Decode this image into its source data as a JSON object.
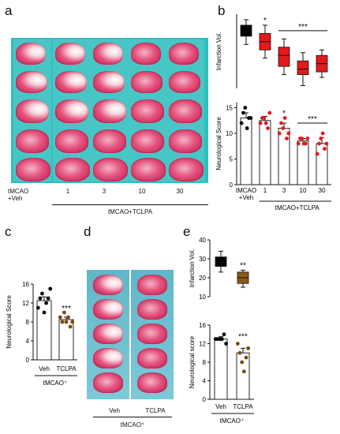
{
  "panels": {
    "a": {
      "letter": "a",
      "axis_labels": [
        "tMCAO\n+Veh",
        "1",
        "3",
        "10",
        "30"
      ],
      "group_label": "tMCAO+TCLPA"
    },
    "b": {
      "letter": "b"
    },
    "c": {
      "letter": "c",
      "sig": "***",
      "group_label": "tMCAO⁺"
    },
    "d": {
      "letter": "d",
      "axis_labels": [
        "Veh",
        "TCLPA"
      ],
      "group_label": "tMCAO⁺"
    },
    "e": {
      "letter": "e"
    }
  },
  "chart_data": [
    {
      "id": "b-top",
      "type": "box",
      "ylabel": "Infarction Vol.",
      "categories": [
        "tMCAO+Veh",
        "1",
        "3",
        "10",
        "30"
      ],
      "medians": [
        31,
        27,
        22,
        17,
        19
      ],
      "q1": [
        29,
        24,
        18,
        15,
        16
      ],
      "q3": [
        33,
        30,
        25,
        20,
        22
      ],
      "min": [
        26,
        21,
        15,
        11,
        14
      ],
      "max": [
        35,
        33,
        28,
        23,
        24
      ],
      "colors": [
        "#000000",
        "#e31a1c",
        "#e31a1c",
        "#e31a1c",
        "#e31a1c"
      ],
      "annotations": [
        {
          "text": "*",
          "category": "1"
        },
        {
          "text": "***",
          "span": [
            "3",
            "30"
          ]
        }
      ]
    },
    {
      "id": "b-bottom",
      "type": "bar",
      "ylabel": "Neurological Score",
      "categories": [
        "tMCAO\n+Veh",
        "1",
        "3",
        "10",
        "30"
      ],
      "values": [
        13,
        12.5,
        11,
        8.5,
        8
      ],
      "errors": [
        1.0,
        0.8,
        1.0,
        0.5,
        1.2
      ],
      "ylim": [
        0,
        16
      ],
      "yticks": [
        0,
        5,
        10,
        15
      ],
      "points": [
        [
          12,
          14,
          15,
          11,
          13,
          13
        ],
        [
          12,
          13,
          13,
          12,
          11,
          14
        ],
        [
          10,
          12,
          11,
          13,
          9,
          10
        ],
        [
          8,
          9,
          9,
          8,
          8,
          9
        ],
        [
          6,
          8,
          9,
          10,
          7,
          8
        ]
      ],
      "point_colors": [
        "#000000",
        "#e31a1c",
        "#e31a1c",
        "#e31a1c",
        "#e31a1c"
      ],
      "annotations": [
        {
          "text": "*",
          "category": "3"
        },
        {
          "text": "***",
          "span": [
            "10",
            "30"
          ]
        }
      ],
      "group_label": "tMCAO+TCLPA"
    },
    {
      "id": "c",
      "type": "bar",
      "ylabel": "Neurological Score",
      "categories": [
        "Veh",
        "TCLPA"
      ],
      "values": [
        12.5,
        8.5
      ],
      "errors": [
        0.8,
        0.5
      ],
      "ylim": [
        0,
        16
      ],
      "yticks": [
        0,
        4,
        8,
        12,
        16
      ],
      "points": [
        [
          11,
          13,
          14,
          10,
          12,
          13,
          15
        ],
        [
          9,
          8,
          10,
          8,
          9,
          7,
          8
        ]
      ],
      "point_colors": [
        "#000000",
        "#7a4a10"
      ]
    },
    {
      "id": "e-top",
      "type": "box",
      "ylabel": "Infarction Vol.",
      "categories": [
        "Veh",
        "TCLPA"
      ],
      "medians": [
        28,
        20
      ],
      "q1": [
        26,
        17
      ],
      "q3": [
        31,
        23
      ],
      "min": [
        23,
        15
      ],
      "max": [
        34,
        24
      ],
      "ylim": [
        10,
        40
      ],
      "yticks": [
        10,
        20,
        30,
        40
      ],
      "colors": [
        "#000000",
        "#8b5a1a"
      ],
      "annotations": [
        {
          "text": "**",
          "category": "TCLPA"
        }
      ]
    },
    {
      "id": "e-bottom",
      "type": "bar",
      "ylabel": "Neurological score",
      "categories": [
        "Veh",
        "TCLPA"
      ],
      "values": [
        13,
        10
      ],
      "errors": [
        0.5,
        1.0
      ],
      "ylim": [
        0,
        16
      ],
      "yticks": [
        0,
        4,
        8,
        12,
        16
      ],
      "points": [
        [
          13,
          13,
          13,
          13,
          14,
          12
        ],
        [
          12,
          10,
          8,
          6,
          9,
          11
        ]
      ],
      "point_colors": [
        "#000000",
        "#7a4a10"
      ],
      "annotations": [
        {
          "text": "***",
          "category": "TCLPA"
        }
      ],
      "group_label": "tMCAO⁺"
    }
  ]
}
